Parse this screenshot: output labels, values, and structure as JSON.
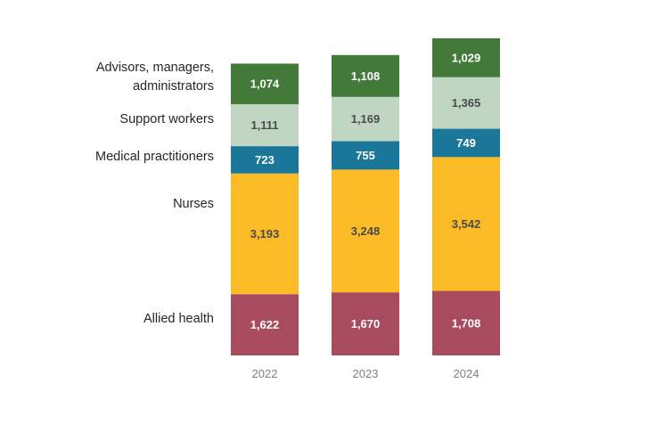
{
  "chart_data": {
    "type": "bar",
    "stacked": true,
    "categories": [
      "2022",
      "2023",
      "2024"
    ],
    "series": [
      {
        "name": "Allied health",
        "color": "#a84b5e",
        "text_color": "#ffffff",
        "values": [
          1622,
          1670,
          1708
        ],
        "labels": [
          "1,622",
          "1,670",
          "1,708"
        ]
      },
      {
        "name": "Nurses",
        "color": "#fbbb26",
        "text_color": "#4a4a4a",
        "values": [
          3193,
          3248,
          3542
        ],
        "labels": [
          "3,193",
          "3,248",
          "3,542"
        ]
      },
      {
        "name": "Medical practitioners",
        "color": "#1b7799",
        "text_color": "#ffffff",
        "values": [
          723,
          755,
          749
        ],
        "labels": [
          "723",
          "755",
          "749"
        ]
      },
      {
        "name": "Support workers",
        "color": "#c0d6c2",
        "text_color": "#4a4a4a",
        "values": [
          1111,
          1169,
          1365
        ],
        "labels": [
          "1,111",
          "1,169",
          "1,365"
        ]
      },
      {
        "name": "Advisors, managers, administrators",
        "legend_lines": [
          "Advisors, managers,",
          "administrators"
        ],
        "color": "#437a3a",
        "text_color": "#ffffff",
        "values": [
          1074,
          1108,
          1029
        ],
        "labels": [
          "1,074",
          "1,108",
          "1,029"
        ]
      }
    ],
    "title": "",
    "xlabel": "",
    "ylabel": "",
    "ylim": [
      0,
      8393
    ],
    "grid": false,
    "legend_placement": "left"
  }
}
